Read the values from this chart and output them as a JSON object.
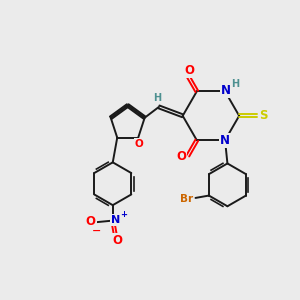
{
  "bg_color": "#ebebeb",
  "bond_color": "#1a1a1a",
  "bond_width": 1.4,
  "atom_colors": {
    "O": "#ff0000",
    "N": "#0000cc",
    "S": "#cccc00",
    "Br": "#cc6600",
    "H_label": "#4d9090",
    "C": "#1a1a1a"
  },
  "font_size_atom": 8.5,
  "font_size_small": 7.0,
  "font_size_br": 7.5
}
